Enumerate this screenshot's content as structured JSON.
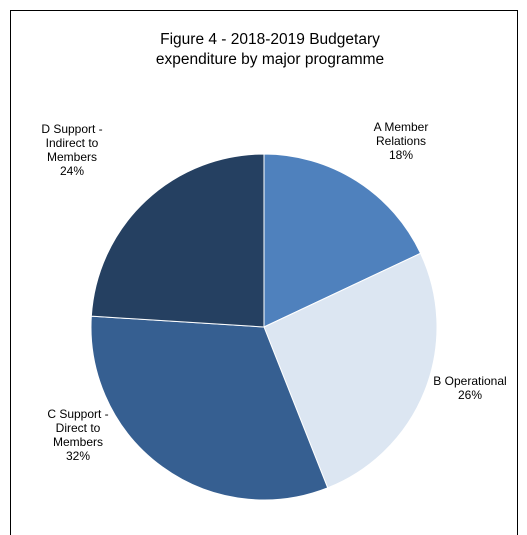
{
  "chart_data": {
    "type": "pie",
    "title": "Figure 4 - 2018-2019 Budgetary expenditure by major programme",
    "legend": "none",
    "slices": [
      {
        "label_lines": [
          "A Member",
          "Relations"
        ],
        "pct_label": "18%",
        "value": 18,
        "color": "#4f81bd"
      },
      {
        "label_lines": [
          "B Operational"
        ],
        "pct_label": "26%",
        "value": 26,
        "color": "#dce6f2"
      },
      {
        "label_lines": [
          "C Support -",
          "Direct to",
          "Members"
        ],
        "pct_label": "32%",
        "value": 32,
        "color": "#365f91"
      },
      {
        "label_lines": [
          "D Support -",
          "Indirect to",
          "Members"
        ],
        "pct_label": "24%",
        "value": 24,
        "color": "#254061"
      }
    ]
  }
}
